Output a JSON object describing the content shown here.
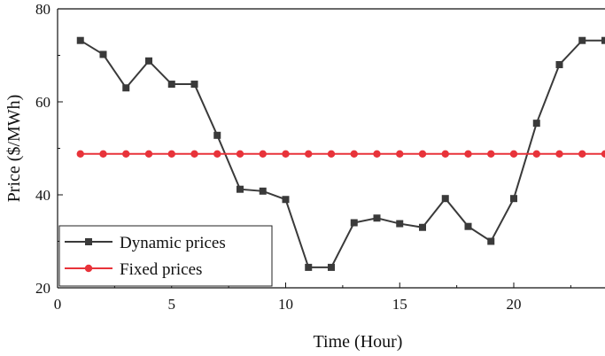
{
  "chart_data": {
    "type": "line",
    "title": "",
    "xlabel": "Time (Hour)",
    "ylabel": "Price ($/MWh)",
    "xlim": [
      0,
      24
    ],
    "ylim": [
      20,
      80
    ],
    "xticks": [
      0,
      5,
      10,
      15,
      20
    ],
    "yticks": [
      20,
      40,
      60,
      80
    ],
    "grid": false,
    "legend_position": "bottom-left",
    "x": [
      1,
      2,
      3,
      4,
      5,
      6,
      7,
      8,
      9,
      10,
      11,
      12,
      13,
      14,
      15,
      16,
      17,
      18,
      19,
      20,
      21,
      22,
      23,
      24
    ],
    "series": [
      {
        "name": "Dynamic prices",
        "color": "#3a3a3a",
        "marker": "square",
        "values": [
          73.2,
          70.2,
          63.0,
          68.8,
          63.8,
          63.8,
          52.8,
          41.2,
          40.8,
          39.0,
          24.4,
          24.4,
          34.0,
          35.0,
          33.8,
          33.0,
          39.2,
          33.2,
          30.0,
          39.2,
          55.4,
          68.0,
          73.2,
          73.2
        ]
      },
      {
        "name": "Fixed prices",
        "color": "#e8333a",
        "marker": "circle",
        "values": [
          48.8,
          48.8,
          48.8,
          48.8,
          48.8,
          48.8,
          48.8,
          48.8,
          48.8,
          48.8,
          48.8,
          48.8,
          48.8,
          48.8,
          48.8,
          48.8,
          48.8,
          48.8,
          48.8,
          48.8,
          48.8,
          48.8,
          48.8,
          48.8
        ]
      }
    ]
  }
}
